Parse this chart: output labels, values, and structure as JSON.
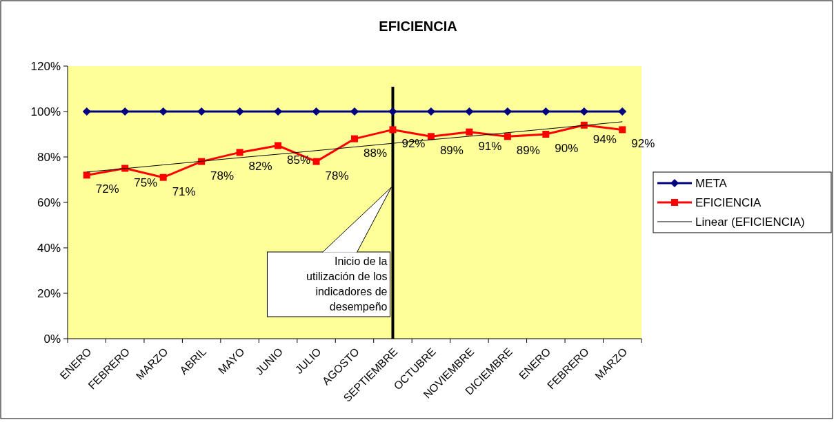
{
  "chart_data": {
    "type": "line",
    "title": "EFICIENCIA",
    "categories": [
      "ENERO",
      "FEBRERO",
      "MARZO",
      "ABRIL",
      "MAYO",
      "JUNIO",
      "JULIO",
      "AGOSTO",
      "SEPTIEMBRE",
      "OCTUBRE",
      "NOVIEMBRE",
      "DICIEMBRE",
      "ENERO",
      "FEBRERO",
      "MARZO"
    ],
    "series": [
      {
        "name": "META",
        "color": "#000080",
        "marker": "diamond",
        "values": [
          100,
          100,
          100,
          100,
          100,
          100,
          100,
          100,
          100,
          100,
          100,
          100,
          100,
          100,
          100
        ]
      },
      {
        "name": "EFICIENCIA",
        "color": "#ff0000",
        "marker": "square",
        "values": [
          72,
          75,
          71,
          78,
          82,
          85,
          78,
          88,
          92,
          89,
          91,
          89,
          90,
          94,
          92
        ],
        "value_labels": [
          "72%",
          "75%",
          "71%",
          "78%",
          "82%",
          "85%",
          "78%",
          "88%",
          "92%",
          "89%",
          "91%",
          "89%",
          "90%",
          "94%",
          "92%"
        ]
      },
      {
        "name": "Linear (EFICIENCIA)",
        "color": "#000000",
        "marker": "none",
        "values": [
          73.4,
          74.9,
          76.5,
          78.1,
          79.7,
          81.2,
          82.8,
          84.4,
          86.0,
          87.6,
          89.1,
          90.7,
          92.3,
          93.9,
          95.5
        ]
      }
    ],
    "ylim": [
      0,
      120
    ],
    "yticks": [
      {
        "value": 0,
        "label": "0%"
      },
      {
        "value": 20,
        "label": "20%"
      },
      {
        "value": 40,
        "label": "40%"
      },
      {
        "value": 60,
        "label": "60%"
      },
      {
        "value": 80,
        "label": "80%"
      },
      {
        "value": 100,
        "label": "100%"
      },
      {
        "value": 120,
        "label": "120%"
      }
    ],
    "ref_lines": [
      {
        "axis": "x",
        "value": "SEPTIEMBRE",
        "label": "Inicio de la utilización de los indicadores de desempeño",
        "color": "#000000"
      }
    ],
    "grid": false,
    "legend": "right",
    "line_style": "solid"
  }
}
